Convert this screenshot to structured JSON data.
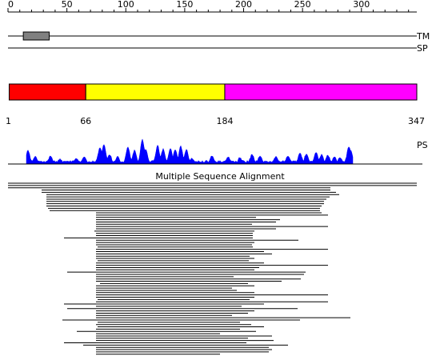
{
  "sequence_length": 347,
  "ruler": {
    "ticks": [
      "0",
      "50",
      "100",
      "150",
      "200",
      "250",
      "300"
    ]
  },
  "tracks": {
    "tm": {
      "label": "TM",
      "segments": [
        [
          13,
          35
        ]
      ]
    },
    "sp": {
      "label": "SP",
      "segments": []
    }
  },
  "domains": [
    {
      "start": 1,
      "end": 66,
      "color": "#ff0000"
    },
    {
      "start": 66,
      "end": 184,
      "color": "#ffff00"
    },
    {
      "start": 184,
      "end": 347,
      "color": "#ff00ff"
    }
  ],
  "boundaries": [
    "1",
    "66",
    "184",
    "347"
  ],
  "ps": {
    "label": "PS",
    "color": "#0000ff"
  },
  "msa": {
    "title": "Multiple Sequence Alignment"
  }
}
